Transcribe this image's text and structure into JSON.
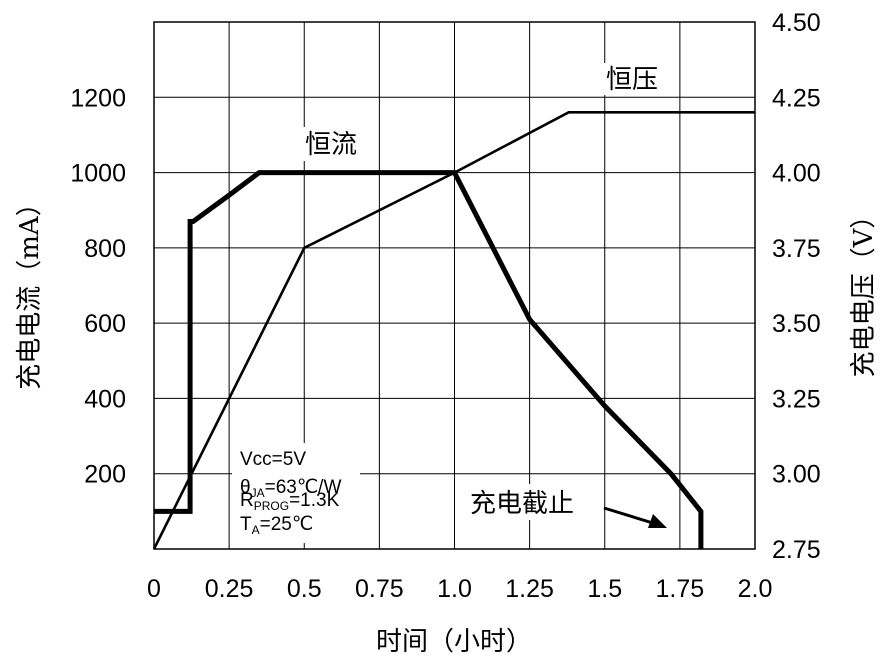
{
  "chart_data": {
    "type": "line",
    "xlabel": "时间（小时）",
    "ylabel_left": "充电电流（mA）",
    "ylabel_right": "充电电压（V）",
    "x_ticks": [
      "0",
      "0.25",
      "0.5",
      "0.75",
      "1.0",
      "1.25",
      "1.5",
      "1.75",
      "2.0"
    ],
    "y_left_ticks": [
      "200",
      "400",
      "600",
      "800",
      "1000",
      "1200"
    ],
    "y_right_ticks": [
      "2.75",
      "3.00",
      "3.25",
      "3.50",
      "3.75",
      "4.00",
      "4.25",
      "4.50"
    ],
    "xlim": [
      0,
      2.0
    ],
    "ylim_left": [
      0,
      1400
    ],
    "ylim_right": [
      2.75,
      4.5
    ],
    "grid": true,
    "series": [
      {
        "axis": "left",
        "style": "thick",
        "x": [
          0,
          0.12,
          0.12,
          0.13,
          0.25,
          0.35,
          0.5,
          0.75,
          1.0,
          1.25,
          1.5,
          1.72,
          1.82,
          1.82
        ],
        "y": [
          100,
          100,
          870,
          870,
          940,
          1000,
          1000,
          1000,
          1000,
          610,
          380,
          200,
          100,
          0
        ]
      },
      {
        "axis": "right",
        "style": "thin",
        "x": [
          0,
          0.5,
          1.0,
          1.38,
          2.0
        ],
        "y": [
          2.75,
          3.75,
          4.0,
          4.2,
          4.2
        ]
      }
    ],
    "annotations": {
      "cc_label": "恒流",
      "cv_label": "恒压",
      "cutoff_label": "充电截止",
      "cond_vcc": "Vcc=5V",
      "cond_theta_main": "θ",
      "cond_theta_sub": "JA",
      "cond_theta_rest": "=63℃/W",
      "cond_r_main": "R",
      "cond_r_sub": "PROG",
      "cond_r_rest": "=1.3K",
      "cond_t_main": "T",
      "cond_t_sub": "A",
      "cond_t_rest": "=25℃"
    }
  }
}
